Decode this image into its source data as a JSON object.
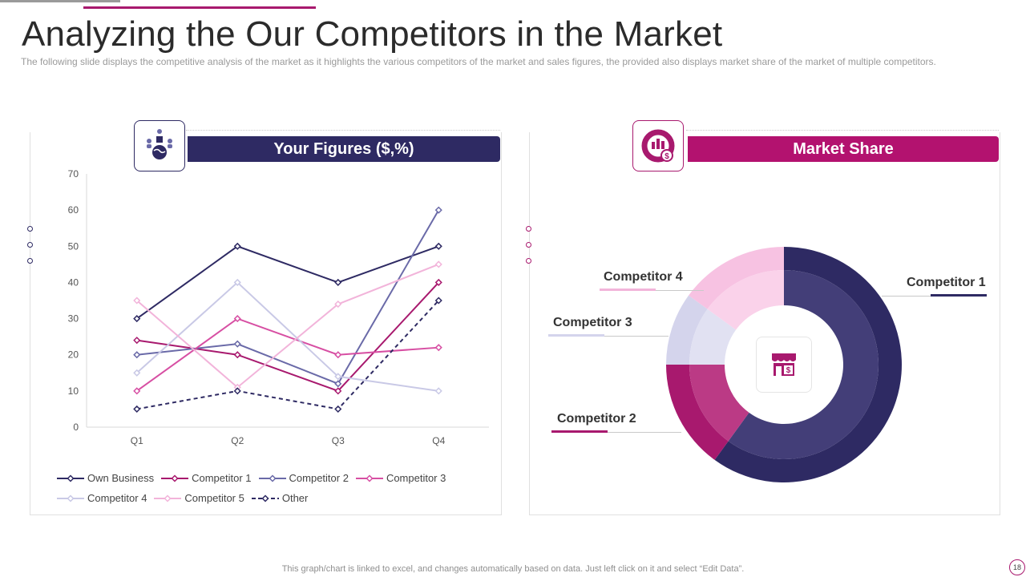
{
  "slide": {
    "title": "Analyzing the Our Competitors in the Market",
    "subtitle": "The following  slide displays the competitive  analysis  of the market  as it highlights the various  competitors of the market  and sales figures,  the provided  also displays market share of the market of multiple competitors.",
    "footer": "This graph/chart is linked to excel,  and changes automatically based on data. Just left click on it and select “Edit Data”.",
    "page_number": "18"
  },
  "colors": {
    "navy": "#2e2a63",
    "magenta": "#a8196e",
    "text": "#333333"
  },
  "left_panel": {
    "header": "Your Figures ($,%)",
    "icon": "people-globe-icon"
  },
  "right_panel": {
    "header": "Market Share",
    "icon": "chart-dollar-icon",
    "center_icon": "store-dollar-icon"
  },
  "chart_data": [
    {
      "type": "line",
      "title": "Your Figures ($,%)",
      "categories": [
        "Q1",
        "Q2",
        "Q3",
        "Q4"
      ],
      "ylim": [
        0,
        70
      ],
      "yticks": [
        0,
        10,
        20,
        30,
        40,
        50,
        60,
        70
      ],
      "grid": false,
      "legend": "bottom",
      "series": [
        {
          "name": "Own Business",
          "values": [
            30,
            50,
            40,
            50
          ],
          "color": "#2e2a63",
          "dashed": false
        },
        {
          "name": "Competitor 1",
          "values": [
            24,
            20,
            10,
            40
          ],
          "color": "#a8196e",
          "dashed": false
        },
        {
          "name": "Competitor 2",
          "values": [
            20,
            23,
            12,
            60
          ],
          "color": "#6a6aa8",
          "dashed": false
        },
        {
          "name": "Competitor 3",
          "values": [
            10,
            30,
            20,
            22
          ],
          "color": "#d74fa3",
          "dashed": false
        },
        {
          "name": "Competitor 4",
          "values": [
            15,
            40,
            14,
            10
          ],
          "color": "#c9c9e6",
          "dashed": false
        },
        {
          "name": "Competitor 5",
          "values": [
            35,
            11,
            34,
            45
          ],
          "color": "#f2b4da",
          "dashed": false
        },
        {
          "name": "Other",
          "values": [
            5,
            10,
            5,
            35
          ],
          "color": "#2e2a63",
          "dashed": true
        }
      ]
    },
    {
      "type": "pie",
      "title": "Market Share",
      "donut": true,
      "series": [
        {
          "name": "Competitor 1",
          "value": 60,
          "color": "#2e2a63",
          "inner_color": "#433e78"
        },
        {
          "name": "Competitor 2",
          "value": 15,
          "color": "#a8196e",
          "inner_color": "#bb3a85"
        },
        {
          "name": "Competitor 3",
          "value": 10,
          "color": "#d4d4ec",
          "inner_color": "#e1e1f2"
        },
        {
          "name": "Competitor 4",
          "value": 15,
          "color": "#f7c2e2",
          "inner_color": "#fad2ea"
        }
      ]
    }
  ]
}
